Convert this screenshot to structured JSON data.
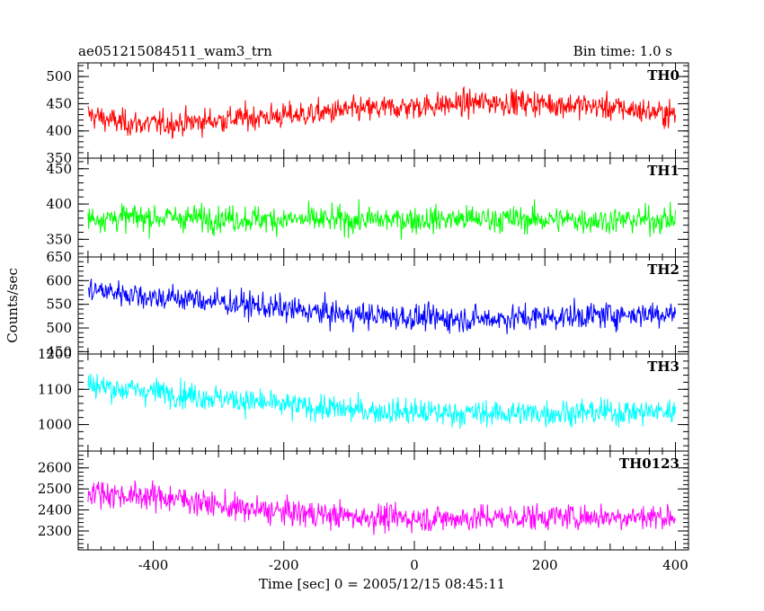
{
  "header": {
    "title": "ae051215084511_wam3_trn",
    "bin_time": "Bin time: 1.0 s"
  },
  "chart_data": {
    "type": "line",
    "title": "ae051215084511_wam3_trn",
    "xlabel": "Time [sec] 0 = 2005/12/15 08:45:11",
    "ylabel": "Counts/sec",
    "xlim": [
      -515,
      420
    ],
    "x_range": [
      -500,
      400
    ],
    "bin_time_s": 1.0,
    "x_ticks": [
      -400,
      -200,
      0,
      200,
      400
    ],
    "grid": false,
    "series": [
      {
        "name": "TH0",
        "color": "#ff0000",
        "ylim": [
          350,
          525
        ],
        "y_ticks": [
          350,
          400,
          450,
          500
        ],
        "values": [
          [
            -500,
            430
          ],
          [
            -450,
            415
          ],
          [
            -400,
            412
          ],
          [
            -350,
            415
          ],
          [
            -300,
            420
          ],
          [
            -250,
            425
          ],
          [
            -200,
            428
          ],
          [
            -150,
            432
          ],
          [
            -100,
            438
          ],
          [
            -50,
            441
          ],
          [
            0,
            445
          ],
          [
            50,
            448
          ],
          [
            100,
            452
          ],
          [
            150,
            453
          ],
          [
            200,
            450
          ],
          [
            250,
            447
          ],
          [
            300,
            443
          ],
          [
            350,
            437
          ],
          [
            400,
            430
          ]
        ]
      },
      {
        "name": "TH1",
        "color": "#00ff00",
        "ylim": [
          325,
          465
        ],
        "y_ticks": [
          350,
          400,
          450
        ],
        "values": [
          [
            -500,
            380
          ],
          [
            -400,
            381
          ],
          [
            -300,
            380
          ],
          [
            -200,
            378
          ],
          [
            -100,
            377
          ],
          [
            0,
            378
          ],
          [
            100,
            379
          ],
          [
            200,
            378
          ],
          [
            300,
            377
          ],
          [
            400,
            378
          ]
        ]
      },
      {
        "name": "TH2",
        "color": "#0000ff",
        "ylim": [
          445,
          650
        ],
        "y_ticks": [
          450,
          500,
          550,
          600,
          650
        ],
        "values": [
          [
            -500,
            580
          ],
          [
            -450,
            575
          ],
          [
            -400,
            565
          ],
          [
            -350,
            562
          ],
          [
            -300,
            555
          ],
          [
            -250,
            548
          ],
          [
            -200,
            540
          ],
          [
            -150,
            533
          ],
          [
            -100,
            528
          ],
          [
            -50,
            525
          ],
          [
            0,
            522
          ],
          [
            50,
            520
          ],
          [
            100,
            519
          ],
          [
            150,
            521
          ],
          [
            200,
            523
          ],
          [
            250,
            525
          ],
          [
            300,
            528
          ],
          [
            350,
            530
          ],
          [
            400,
            532
          ]
        ]
      },
      {
        "name": "TH3",
        "color": "#00ffff",
        "ylim": [
          925,
          1200
        ],
        "y_ticks": [
          1000,
          1100,
          1200
        ],
        "values": [
          [
            -500,
            1115
          ],
          [
            -450,
            1100
          ],
          [
            -400,
            1095
          ],
          [
            -350,
            1085
          ],
          [
            -300,
            1075
          ],
          [
            -250,
            1065
          ],
          [
            -200,
            1055
          ],
          [
            -150,
            1048
          ],
          [
            -100,
            1042
          ],
          [
            -50,
            1038
          ],
          [
            0,
            1035
          ],
          [
            50,
            1033
          ],
          [
            100,
            1032
          ],
          [
            150,
            1032
          ],
          [
            200,
            1033
          ],
          [
            250,
            1034
          ],
          [
            300,
            1035
          ],
          [
            350,
            1036
          ],
          [
            400,
            1037
          ]
        ]
      },
      {
        "name": "TH0123",
        "color": "#ff00ff",
        "ylim": [
          2210,
          2680
        ],
        "y_ticks": [
          2300,
          2400,
          2500,
          2600
        ],
        "values": [
          [
            -500,
            2490
          ],
          [
            -450,
            2470
          ],
          [
            -400,
            2465
          ],
          [
            -350,
            2450
          ],
          [
            -300,
            2420
          ],
          [
            -250,
            2400
          ],
          [
            -200,
            2390
          ],
          [
            -150,
            2380
          ],
          [
            -100,
            2370
          ],
          [
            -50,
            2365
          ],
          [
            0,
            2360
          ],
          [
            50,
            2360
          ],
          [
            100,
            2362
          ],
          [
            150,
            2365
          ],
          [
            200,
            2368
          ],
          [
            250,
            2368
          ],
          [
            300,
            2368
          ],
          [
            350,
            2368
          ],
          [
            400,
            2368
          ]
        ]
      }
    ]
  }
}
